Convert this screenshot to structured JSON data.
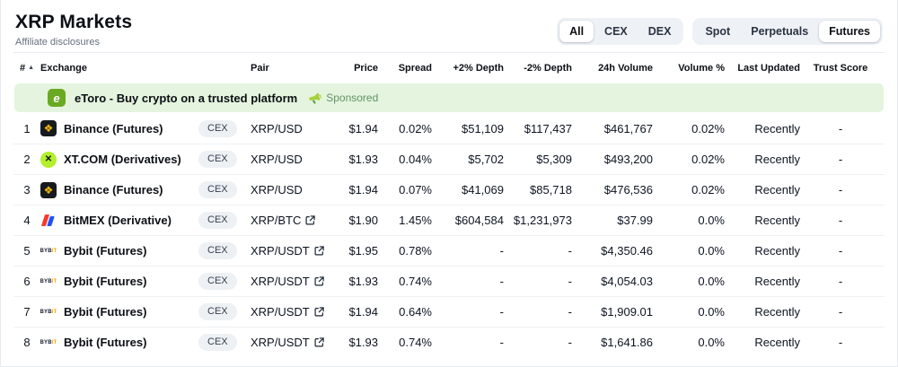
{
  "page": {
    "title": "XRP Markets",
    "subtitle": "Affiliate disclosures"
  },
  "filters": {
    "group1": [
      {
        "label": "All",
        "active": true
      },
      {
        "label": "CEX",
        "active": false
      },
      {
        "label": "DEX",
        "active": false
      }
    ],
    "group2": [
      {
        "label": "Spot",
        "active": false
      },
      {
        "label": "Perpetuals",
        "active": false
      },
      {
        "label": "Futures",
        "active": true
      }
    ]
  },
  "table": {
    "columns": [
      "#",
      "Exchange",
      "Pair",
      "Price",
      "Spread",
      "+2% Depth",
      "-2% Depth",
      "24h Volume",
      "Volume %",
      "Last Updated",
      "Trust Score"
    ],
    "sort_icon": "▲"
  },
  "sponsored_row": {
    "text": "eToro - Buy crypto on a trusted platform",
    "badge": "Sponsored",
    "badge_color": "#639468",
    "background": "#e4f4de"
  },
  "rows": [
    {
      "rank": "1",
      "exchange": "Binance (Futures)",
      "logo": "binance",
      "badge": "CEX",
      "pair": "XRP/USD",
      "pair_link": false,
      "price": "$1.94",
      "spread": "0.02%",
      "depth_plus": "$51,109",
      "depth_minus": "$117,437",
      "volume": "$461,767",
      "volume_pct": "0.02%",
      "updated": "Recently",
      "trust": "-"
    },
    {
      "rank": "2",
      "exchange": "XT.COM (Derivatives)",
      "logo": "xt",
      "badge": "CEX",
      "pair": "XRP/USD",
      "pair_link": false,
      "price": "$1.93",
      "spread": "0.04%",
      "depth_plus": "$5,702",
      "depth_minus": "$5,309",
      "volume": "$493,200",
      "volume_pct": "0.02%",
      "updated": "Recently",
      "trust": "-"
    },
    {
      "rank": "3",
      "exchange": "Binance (Futures)",
      "logo": "binance",
      "badge": "CEX",
      "pair": "XRP/USD",
      "pair_link": false,
      "price": "$1.94",
      "spread": "0.07%",
      "depth_plus": "$41,069",
      "depth_minus": "$85,718",
      "volume": "$476,536",
      "volume_pct": "0.02%",
      "updated": "Recently",
      "trust": "-"
    },
    {
      "rank": "4",
      "exchange": "BitMEX (Derivative)",
      "logo": "bitmex",
      "badge": "CEX",
      "pair": "XRP/BTC",
      "pair_link": true,
      "price": "$1.90",
      "spread": "1.45%",
      "depth_plus": "$604,584",
      "depth_minus": "$1,231,973",
      "volume": "$37.99",
      "volume_pct": "0.0%",
      "updated": "Recently",
      "trust": "-"
    },
    {
      "rank": "5",
      "exchange": "Bybit (Futures)",
      "logo": "bybit",
      "badge": "CEX",
      "pair": "XRP/USDT",
      "pair_link": true,
      "price": "$1.95",
      "spread": "0.78%",
      "depth_plus": "-",
      "depth_minus": "-",
      "volume": "$4,350.46",
      "volume_pct": "0.0%",
      "updated": "Recently",
      "trust": "-"
    },
    {
      "rank": "6",
      "exchange": "Bybit (Futures)",
      "logo": "bybit",
      "badge": "CEX",
      "pair": "XRP/USDT",
      "pair_link": true,
      "price": "$1.93",
      "spread": "0.74%",
      "depth_plus": "-",
      "depth_minus": "-",
      "volume": "$4,054.03",
      "volume_pct": "0.0%",
      "updated": "Recently",
      "trust": "-"
    },
    {
      "rank": "7",
      "exchange": "Bybit (Futures)",
      "logo": "bybit",
      "badge": "CEX",
      "pair": "XRP/USDT",
      "pair_link": true,
      "price": "$1.94",
      "spread": "0.64%",
      "depth_plus": "-",
      "depth_minus": "-",
      "volume": "$1,909.01",
      "volume_pct": "0.0%",
      "updated": "Recently",
      "trust": "-"
    },
    {
      "rank": "8",
      "exchange": "Bybit (Futures)",
      "logo": "bybit",
      "badge": "CEX",
      "pair": "XRP/USDT",
      "pair_link": true,
      "price": "$1.93",
      "spread": "0.74%",
      "depth_plus": "-",
      "depth_minus": "-",
      "volume": "$1,641.86",
      "volume_pct": "0.0%",
      "updated": "Recently",
      "trust": "-"
    }
  ],
  "icons": {
    "sort": "▲",
    "logos": {
      "binance": {
        "shape": "rounded-square",
        "bg": "#171a1e",
        "fg": "#f0b90b",
        "glyph": "❖"
      },
      "xt": {
        "shape": "circle",
        "bg": "#b3ef2d",
        "fg": "#101418",
        "glyph": "✕"
      },
      "bitmex": {
        "shape": "bars",
        "red": "#f43b2f",
        "blue": "#2151f5"
      },
      "bybit": {
        "shape": "wordmark",
        "text1": "BYB",
        "text2": "IT",
        "fg1": "#15192a",
        "fg2": "#f7a600"
      },
      "etoro": {
        "shape": "rounded-square",
        "bg": "#6aaa22",
        "fg": "#ffffff",
        "glyph": "e"
      }
    }
  },
  "colors": {
    "text_primary": "#0c0f14",
    "text_secondary": "#66707f",
    "row_divider": "#eef1f4",
    "pill_background": "#eef1f4",
    "tab_group_background": "#eef1f5",
    "sponsored_background": "#e4f4de",
    "sponsored_green": "#639468",
    "etoro_green": "#6aaa22",
    "binance_yellow": "#f0b90b",
    "xt_lime": "#b3ef2d",
    "bybit_yellow": "#f7a600",
    "bitmex_red": "#f43b2f",
    "bitmex_blue": "#2151f5"
  }
}
